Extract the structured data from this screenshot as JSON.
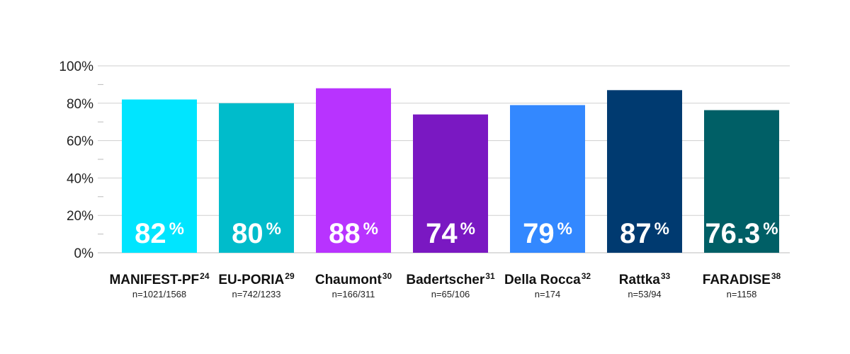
{
  "chart_data": {
    "type": "bar",
    "title": "",
    "xlabel": "",
    "ylabel": "",
    "ylim": [
      0,
      100
    ],
    "y_ticks": [
      0,
      20,
      40,
      60,
      80,
      100
    ],
    "y_tick_labels": [
      "0%",
      "20%",
      "40%",
      "60%",
      "80%",
      "100%"
    ],
    "grid": true,
    "legend": "none",
    "categories": [
      {
        "name": "MANIFEST-PF",
        "ref": "24",
        "n_label": "n=1021/1568",
        "value": 82,
        "value_label": "82",
        "unit": "%",
        "color": "#00e5ff"
      },
      {
        "name": "EU-PORIA",
        "ref": "29",
        "n_label": "n=742/1233",
        "value": 80,
        "value_label": "80",
        "unit": "%",
        "color": "#00bccb"
      },
      {
        "name": "Chaumont",
        "ref": "30",
        "n_label": "n=166/311",
        "value": 88,
        "value_label": "88",
        "unit": "%",
        "color": "#b833ff"
      },
      {
        "name": "Badertscher",
        "ref": "31",
        "n_label": "n=65/106",
        "value": 74,
        "value_label": "74",
        "unit": "%",
        "color": "#7a18c2"
      },
      {
        "name": "Della Rocca",
        "ref": "32",
        "n_label": "n=174",
        "value": 79,
        "value_label": "79",
        "unit": "%",
        "color": "#3388ff"
      },
      {
        "name": "Rattka",
        "ref": "33",
        "n_label": "n=53/94",
        "value": 87,
        "value_label": "87",
        "unit": "%",
        "color": "#003a70"
      },
      {
        "name": "FARADISE",
        "ref": "38",
        "n_label": "n=1158",
        "value": 76.3,
        "value_label": "76.3",
        "unit": "%",
        "color": "#005f66"
      }
    ]
  }
}
